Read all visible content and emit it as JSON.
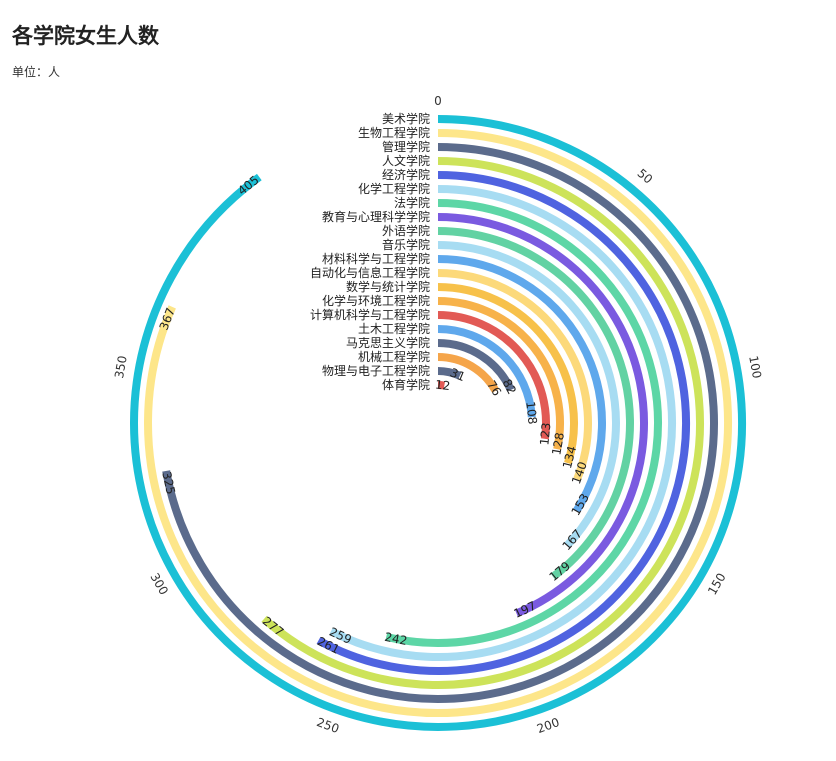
{
  "chart_data": {
    "type": "bar",
    "subtype": "radial-bar",
    "title": "各学院女生人数",
    "subtitle": "单位：人",
    "axis_max": 450,
    "ticks": [
      0,
      50,
      100,
      150,
      200,
      250,
      300,
      350
    ],
    "categories": [
      "美术学院",
      "生物工程学院",
      "管理学院",
      "人文学院",
      "经济学院",
      "化学工程学院",
      "法学院",
      "教育与心理科学学院",
      "外语学院",
      "音乐学院",
      "材料科学与工程学院",
      "自动化与信息工程学院",
      "数学与统计学院",
      "化学与环境工程学院",
      "计算机科学与工程学院",
      "土木工程学院",
      "马克思主义学院",
      "机械工程学院",
      "物理与电子工程学院",
      "体育学院"
    ],
    "values": [
      405,
      367,
      325,
      277,
      261,
      259,
      242,
      197,
      179,
      167,
      153,
      140,
      134,
      128,
      123,
      108,
      82,
      76,
      31,
      12
    ],
    "colors": [
      "#1bc0d6",
      "#fde68a",
      "#5b6b8c",
      "#cde35a",
      "#4f63e0",
      "#a7dcf2",
      "#5dd6a6",
      "#7a5ae0",
      "#62d2a3",
      "#a7dcf2",
      "#5fa8ec",
      "#fcd97a",
      "#f7c14a",
      "#f7b24a",
      "#e25a55",
      "#5fa8ec",
      "#5b6b8c",
      "#f5a54a",
      "#5b6b8c",
      "#e25a55"
    ]
  }
}
